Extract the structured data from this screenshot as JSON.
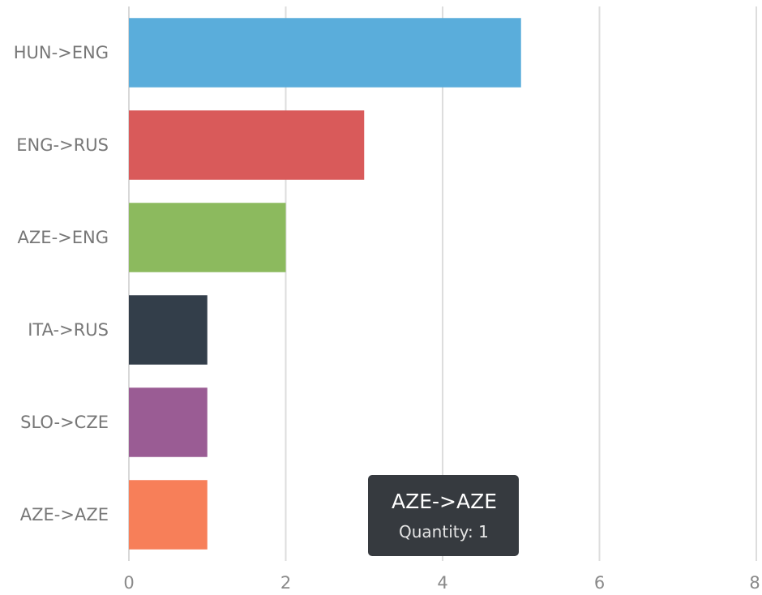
{
  "chart_data": {
    "type": "bar",
    "orientation": "horizontal",
    "title": "",
    "xlabel": "",
    "ylabel": "",
    "categories": [
      "HUN->ENG",
      "ENG->RUS",
      "AZE->ENG",
      "ITA->RUS",
      "SLO->CZE",
      "AZE->AZE"
    ],
    "values": [
      5,
      3,
      2,
      1,
      1,
      1
    ],
    "colors": [
      "#5aaddb",
      "#d95a5a",
      "#8cba5e",
      "#333e4a",
      "#9a5c94",
      "#f77f59"
    ],
    "xlim": [
      0,
      8
    ],
    "xticks": [
      "0",
      "2",
      "4",
      "6",
      "8"
    ],
    "grid": true,
    "legend": "none"
  },
  "tooltip": {
    "title": "AZE->AZE",
    "body": "Quantity: 1"
  }
}
